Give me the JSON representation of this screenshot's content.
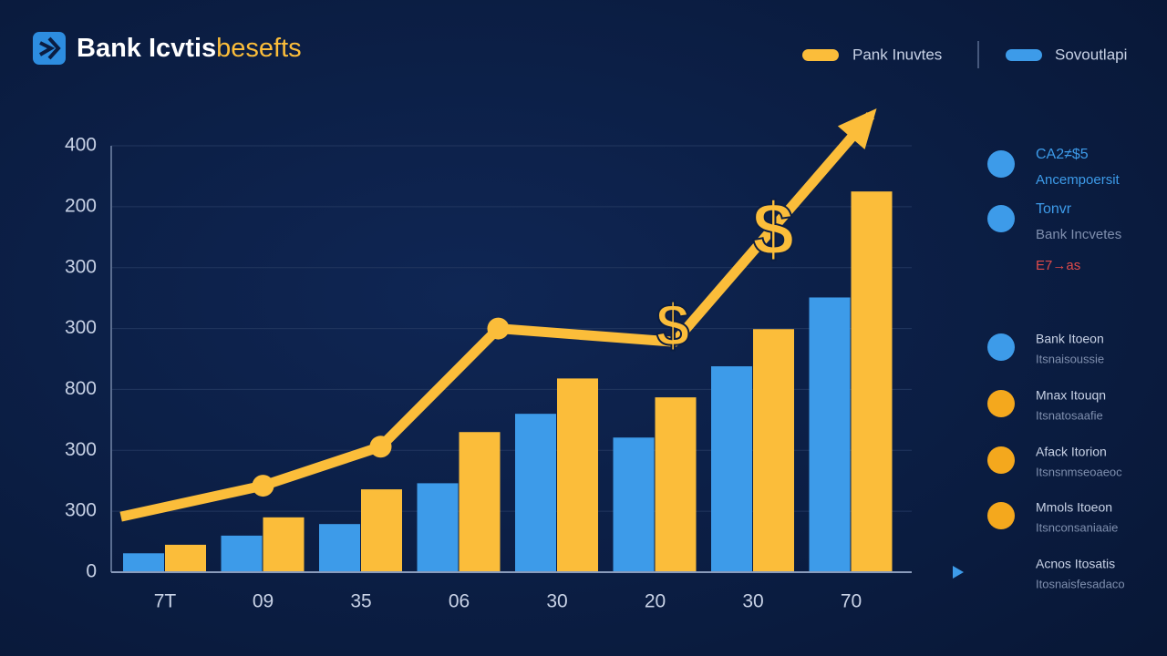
{
  "chart_data": {
    "type": "bar",
    "title": "Bank Icvtis",
    "title_suffix": "besefts",
    "categories": [
      "7T",
      "09",
      "35",
      "06",
      "30",
      "20",
      "30",
      "70"
    ],
    "series": [
      {
        "name": "Sovoutlapi",
        "color": "#3d9be9",
        "values": [
          0.31,
          0.6,
          0.79,
          1.46,
          2.6,
          2.21,
          3.38,
          4.51
        ]
      },
      {
        "name": "Pank Inuvtes",
        "color": "#fbbd3a",
        "values": [
          0.45,
          0.9,
          1.36,
          2.3,
          3.18,
          2.87,
          3.99,
          6.25
        ]
      }
    ],
    "line": {
      "color": "#fbbd3a",
      "x": [
        -0.45,
        1,
        2.2,
        3.4,
        5.2,
        7.2
      ],
      "values": [
        0.91,
        1.42,
        2.06,
        4.0,
        3.78,
        7.5
      ]
    },
    "annotations": [
      "$",
      "$"
    ],
    "ylim": [
      0,
      7
    ],
    "yticks": [
      {
        "value": 0,
        "label": "0"
      },
      {
        "value": 1,
        "label": "300"
      },
      {
        "value": 2,
        "label": "300"
      },
      {
        "value": 3,
        "label": "800"
      },
      {
        "value": 4,
        "label": "300"
      },
      {
        "value": 5,
        "label": "300"
      },
      {
        "value": 6,
        "label": "200"
      },
      {
        "value": 7,
        "label": "400"
      }
    ],
    "grid": true,
    "side_items": [
      {
        "label": "CA2≠$5",
        "sublabel": "Ancempoersit",
        "color": "#3d9be9"
      },
      {
        "label": "Tonvr",
        "sublabel": "Bank Incvetes",
        "note": "E7→as",
        "color": "#3d9be9"
      },
      {
        "label": "Bank Itoeon",
        "sublabel": "Itsnaisoussie",
        "color": "#3d9be9"
      },
      {
        "label": "Mnax Itouqn",
        "sublabel": "Itsnatosaafie",
        "color": "#f4a81d"
      },
      {
        "label": "Afack Itorion",
        "sublabel": "Itsnsnmseoaeoc",
        "color": "#f4a81d"
      },
      {
        "label": "Mmols Itoeon",
        "sublabel": "Itsnconsaniaaie",
        "color": "#f4a81d"
      },
      {
        "label": "Acnos Itosatis",
        "sublabel": "Itosnaisfesadaco"
      }
    ]
  }
}
